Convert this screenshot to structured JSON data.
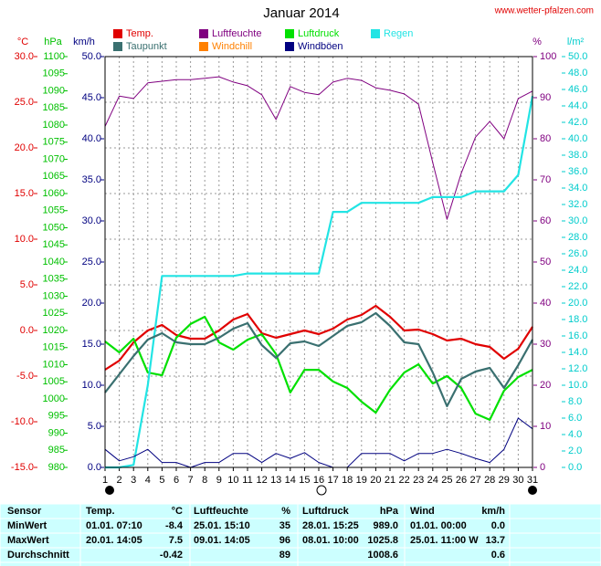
{
  "chart_data": {
    "type": "line",
    "title": "Januar 2014",
    "source": "www.wetter-pfalzen.com",
    "x": [
      1,
      2,
      3,
      4,
      5,
      6,
      7,
      8,
      9,
      10,
      11,
      12,
      13,
      14,
      15,
      16,
      17,
      18,
      19,
      20,
      21,
      22,
      23,
      24,
      25,
      26,
      27,
      28,
      29,
      30,
      31
    ],
    "xlim": [
      1,
      31
    ],
    "xticks": [
      1,
      2,
      3,
      4,
      5,
      6,
      7,
      8,
      9,
      10,
      11,
      12,
      13,
      14,
      15,
      16,
      17,
      18,
      19,
      20,
      21,
      22,
      23,
      24,
      25,
      26,
      27,
      28,
      29,
      30,
      31
    ],
    "grid": true,
    "axes": {
      "temp": {
        "label": "°C",
        "color": "#e00000",
        "ylim": [
          -15,
          30
        ],
        "yticks": [
          {
            "value": -15,
            "label": "-15.0"
          },
          {
            "value": -10,
            "label": "-10.0"
          },
          {
            "value": -5,
            "label": "-5.0"
          },
          {
            "value": 0,
            "label": "0.0"
          },
          {
            "value": 5,
            "label": "5.0"
          },
          {
            "value": 10,
            "label": "10.0"
          },
          {
            "value": 15,
            "label": "15.0"
          },
          {
            "value": 20,
            "label": "20.0"
          },
          {
            "value": 25,
            "label": "25.0"
          },
          {
            "value": 30,
            "label": "30.0"
          }
        ]
      },
      "pressure": {
        "label": "hPa",
        "color": "#00c000",
        "ylim": [
          980,
          1100
        ],
        "yticks": [
          980,
          985,
          990,
          995,
          1000,
          1005,
          1010,
          1015,
          1020,
          1025,
          1030,
          1035,
          1040,
          1045,
          1050,
          1055,
          1060,
          1065,
          1070,
          1075,
          1080,
          1085,
          1090,
          1095,
          1100
        ]
      },
      "wind": {
        "label": "km/h",
        "color": "#000080",
        "ylim": [
          0,
          50
        ],
        "yticks": [
          {
            "value": 0,
            "label": "0.0"
          },
          {
            "value": 5,
            "label": "5.0"
          },
          {
            "value": 10,
            "label": "10.0"
          },
          {
            "value": 15,
            "label": "15.0"
          },
          {
            "value": 20,
            "label": "20.0"
          },
          {
            "value": 25,
            "label": "25.0"
          },
          {
            "value": 30,
            "label": "30.0"
          },
          {
            "value": 35,
            "label": "35.0"
          },
          {
            "value": 40,
            "label": "40.0"
          },
          {
            "value": 45,
            "label": "45.0"
          },
          {
            "value": 50,
            "label": "50.0"
          }
        ]
      },
      "humidity": {
        "label": "%",
        "color": "#800080",
        "ylim": [
          0,
          100
        ],
        "yticks": [
          0,
          10,
          20,
          30,
          40,
          50,
          60,
          70,
          80,
          90,
          100
        ]
      },
      "rain": {
        "label": "l/m²",
        "color": "#00cccc",
        "ylim": [
          0,
          50
        ],
        "yticks": [
          {
            "value": 0,
            "label": "0.0"
          },
          {
            "value": 2,
            "label": "2.0"
          },
          {
            "value": 4,
            "label": "4.0"
          },
          {
            "value": 6,
            "label": "6.0"
          },
          {
            "value": 8,
            "label": "8.0"
          },
          {
            "value": 10,
            "label": "10.0"
          },
          {
            "value": 12,
            "label": "12.0"
          },
          {
            "value": 14,
            "label": "14.0"
          },
          {
            "value": 16,
            "label": "16.0"
          },
          {
            "value": 18,
            "label": "18.0"
          },
          {
            "value": 20,
            "label": "20.0"
          },
          {
            "value": 22,
            "label": "22.0"
          },
          {
            "value": 24,
            "label": "24.0"
          },
          {
            "value": 26,
            "label": "26.0"
          },
          {
            "value": 28,
            "label": "28.0"
          },
          {
            "value": 30,
            "label": "30.0"
          },
          {
            "value": 32,
            "label": "32.0"
          },
          {
            "value": 34,
            "label": "34.0"
          },
          {
            "value": 36,
            "label": "36.0"
          },
          {
            "value": 38,
            "label": "38.0"
          },
          {
            "value": 40,
            "label": "40.0"
          },
          {
            "value": 42,
            "label": "42.0"
          },
          {
            "value": 44,
            "label": "44.0"
          },
          {
            "value": 46,
            "label": "46.0"
          },
          {
            "value": 48,
            "label": "48.0"
          },
          {
            "value": 50,
            "label": "50.0"
          }
        ]
      }
    },
    "series": [
      {
        "name": "Temp.",
        "color": "#e00000",
        "axis": "temp",
        "values": [
          -4.3,
          -3.3,
          -1.3,
          0,
          0.6,
          -0.5,
          -0.9,
          -0.9,
          0,
          1.2,
          1.8,
          -0.3,
          -0.8,
          -0.4,
          0,
          -0.4,
          0.2,
          1.2,
          1.7,
          2.7,
          1.5,
          0,
          0.1,
          -0.4,
          -1.1,
          -0.9,
          -1.5,
          -1.8,
          -3.1,
          -2.0,
          0.4
        ]
      },
      {
        "name": "Luftfeuchte",
        "color": "#800080",
        "axis": "humidity",
        "values": [
          83,
          90.4,
          89.8,
          93.6,
          94,
          94.4,
          94.4,
          94.7,
          95.1,
          93.8,
          92.9,
          90.7,
          84.7,
          92.7,
          91.3,
          90.7,
          93.8,
          94.7,
          94.2,
          92.4,
          91.8,
          90.9,
          88.4,
          74.2,
          60.4,
          71.6,
          80.4,
          84.2,
          80,
          89.8,
          91.6
        ]
      },
      {
        "name": "Luftdruck",
        "color": "#00e000",
        "axis": "pressure",
        "values": [
          1016.8,
          1013.6,
          1017.6,
          1007.7,
          1006.9,
          1017.9,
          1021.9,
          1024,
          1016.5,
          1014.4,
          1017.3,
          1018.9,
          1013.1,
          1001.9,
          1008.5,
          1008.5,
          1005.1,
          1003.2,
          999.2,
          996,
          1002.7,
          1007.7,
          1010.1,
          1004.5,
          1006.7,
          1003.2,
          995.7,
          993.9,
          1002.4,
          1006.4,
          1008.5
        ]
      },
      {
        "name": "Regen",
        "color": "#22e4e4",
        "axis": "rain",
        "values": [
          0,
          0,
          0.3,
          10,
          23.3,
          23.3,
          23.3,
          23.3,
          23.3,
          23.3,
          23.6,
          23.6,
          23.6,
          23.6,
          23.6,
          23.6,
          31.1,
          31.1,
          32.2,
          32.2,
          32.2,
          32.2,
          32.2,
          32.9,
          32.9,
          32.9,
          33.6,
          33.6,
          33.6,
          35.6,
          45.2
        ]
      },
      {
        "name": "Taupunkt",
        "color": "#3a7070",
        "axis": "temp",
        "values": [
          -6.8,
          -4.8,
          -2.8,
          -1,
          -0.3,
          -1.3,
          -1.5,
          -1.5,
          -0.8,
          0.2,
          0.8,
          -1.6,
          -3,
          -1.4,
          -1.2,
          -1.7,
          -0.6,
          0.5,
          0.9,
          1.9,
          0.5,
          -1.3,
          -1.5,
          -4.6,
          -8.3,
          -5.3,
          -4.5,
          -4.1,
          -6.3,
          -3.8,
          -1.0
        ]
      },
      {
        "name": "Windchill",
        "color": "#ff8000",
        "axis": "temp",
        "values": [
          null,
          null,
          null,
          null,
          null,
          null,
          null,
          null,
          null,
          null,
          null,
          null,
          null,
          null,
          null,
          null,
          null,
          null,
          null,
          null,
          null,
          null,
          null,
          null,
          null,
          null,
          null,
          null,
          null,
          null,
          null
        ]
      },
      {
        "name": "Windböen",
        "color": "#000080",
        "axis": "wind",
        "values": [
          2.2,
          0.8,
          1.3,
          2.2,
          0.6,
          0.6,
          0,
          0.6,
          0.6,
          1.7,
          1.7,
          0.6,
          1.7,
          1.1,
          1.8,
          0.6,
          0,
          0,
          1.7,
          1.7,
          1.7,
          0.8,
          1.7,
          1.7,
          2.2,
          1.7,
          1.1,
          0.6,
          2.2,
          6.0,
          4.7
        ]
      }
    ]
  },
  "table": {
    "header": [
      "Sensor",
      "Temp.",
      "°C",
      "Luftfeuchte",
      "%",
      "Luftdruck",
      "hPa",
      "Wind",
      "km/h"
    ],
    "rows": [
      {
        "label": "MinWert",
        "cells": [
          "01.01.  07:10",
          "-8.4",
          "25.01.  15:10",
          "35",
          "28.01.  15:25",
          "989.0",
          "01.01.  00:00",
          "0.0"
        ]
      },
      {
        "label": "MaxWert",
        "cells": [
          "20.01.  14:05",
          "7.5",
          "09.01.  14:05",
          "96",
          "08.01.  10:00",
          "1025.8",
          "25.01.  11:00 W",
          "13.7"
        ]
      },
      {
        "label": "Durchschnitt",
        "cells": [
          null,
          "-0.42",
          null,
          "89",
          null,
          "1008.6",
          null,
          "0.6"
        ]
      }
    ]
  }
}
